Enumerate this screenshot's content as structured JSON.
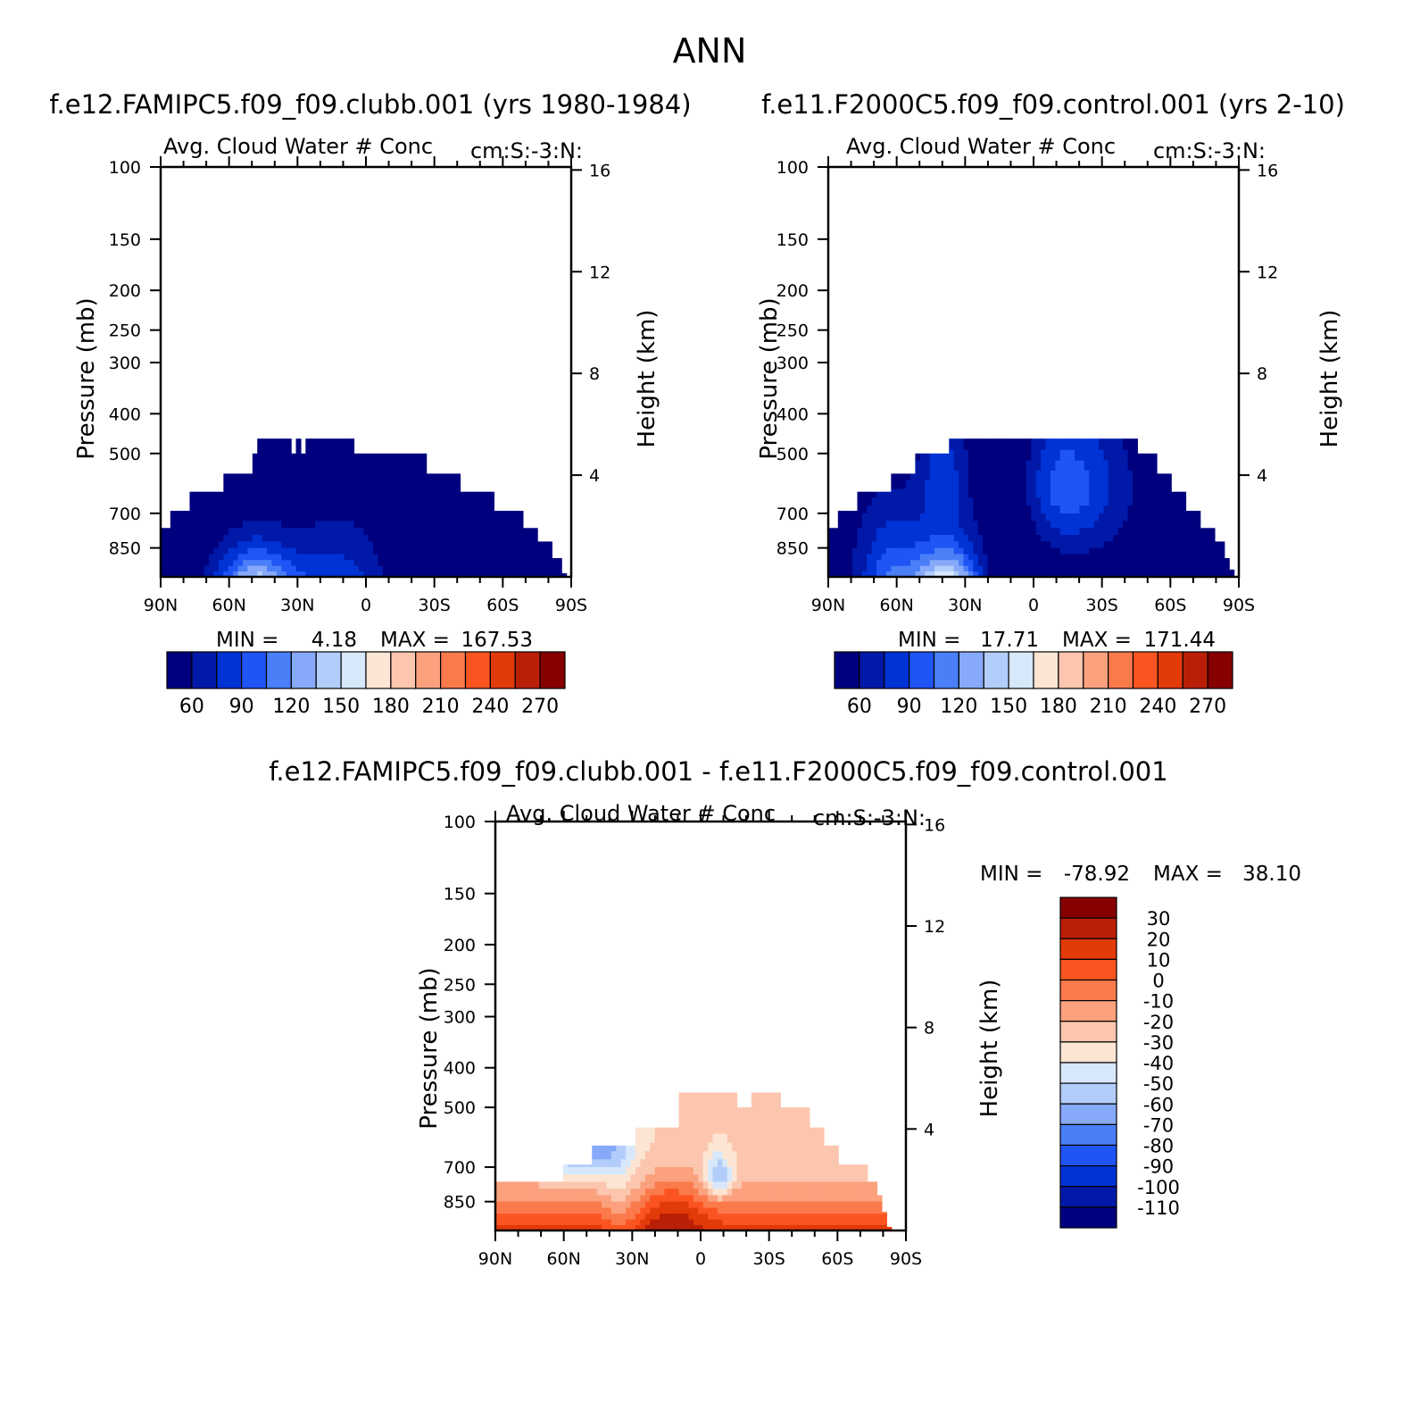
{
  "figure_title": "ANN",
  "ticks": {
    "pressure": [
      "100",
      "150",
      "200",
      "250",
      "300",
      "400",
      "500",
      "700",
      "850"
    ],
    "height": [
      "16",
      "12",
      "8",
      "4"
    ],
    "lat": [
      "90N",
      "60N",
      "30N",
      "0",
      "30S",
      "60S",
      "90S"
    ]
  },
  "colors": {
    "abs_palette": [
      "#00007f",
      "#0019a8",
      "#0033d6",
      "#1f55f5",
      "#4a7ff7",
      "#86a9f9",
      "#b3cdfb",
      "#d7e8fb",
      "#fde5d4",
      "#fcc6ae",
      "#fba17e",
      "#fb7a4c",
      "#fb5421",
      "#e33a0a",
      "#b91f06",
      "#860000"
    ],
    "diff_palette": [
      "#00007f",
      "#0019a8",
      "#0033d6",
      "#1f55f5",
      "#4a7ff7",
      "#86a9f9",
      "#b3cdfb",
      "#d7e8fb",
      "#fde5d4",
      "#fcc6ae",
      "#fba17e",
      "#fb7a4c",
      "#fb5421",
      "#e33a0a",
      "#b91f06",
      "#860000"
    ]
  },
  "chart_data": [
    {
      "type": "heatmap",
      "panel_title": "f.e12.FAMIPC5.f09_f09.clubb.001 (yrs 1980-1984)",
      "subtitle_left": "Avg. Cloud Water # Conc",
      "subtitle_right": "cm:S:-3:N:",
      "ylabel": "Pressure (mb)",
      "ylabel_right": "Height (km)",
      "xlabel": "",
      "x_range": [
        90,
        -90
      ],
      "y_range_mb": [
        1000,
        100
      ],
      "min_label": "MIN =",
      "min_value": "4.18",
      "max_label": "MAX =",
      "max_value": "167.53",
      "colorbar_labels": [
        "60",
        "90",
        "120",
        "150",
        "180",
        "210",
        "240",
        "270"
      ],
      "field_top_mb": [
        760,
        760,
        690,
        690,
        690,
        690,
        620,
        620,
        620,
        620,
        620,
        620,
        620,
        560,
        560,
        560,
        560,
        560,
        560,
        500,
        460,
        460,
        460,
        460,
        460,
        460,
        460,
        500,
        460,
        500,
        460,
        460,
        460,
        460,
        460,
        460,
        460,
        460,
        460,
        460,
        500,
        500,
        500,
        500,
        500,
        500,
        500,
        500,
        500,
        500,
        500,
        500,
        500,
        500,
        500,
        560,
        560,
        560,
        560,
        560,
        560,
        560,
        620,
        620,
        620,
        620,
        620,
        620,
        620,
        690,
        690,
        690,
        690,
        690,
        690,
        760,
        760,
        760,
        820,
        820,
        820,
        900,
        900,
        980,
        1000
      ]
    },
    {
      "type": "heatmap",
      "panel_title": "f.e11.F2000C5.f09_f09.control.001 (yrs 2-10)",
      "subtitle_left": "Avg. Cloud Water # Conc",
      "subtitle_right": "cm:S:-3:N:",
      "ylabel": "Pressure (mb)",
      "ylabel_right": "Height (km)",
      "xlabel": "",
      "x_range": [
        90,
        -90
      ],
      "y_range_mb": [
        1000,
        100
      ],
      "min_label": "MIN =",
      "min_value": "17.71",
      "max_label": "MAX =",
      "max_value": "171.44",
      "colorbar_labels": [
        "60",
        "90",
        "120",
        "150",
        "180",
        "210",
        "240",
        "270"
      ],
      "field_top_mb": [
        760,
        760,
        690,
        690,
        690,
        690,
        620,
        620,
        620,
        620,
        620,
        620,
        620,
        560,
        560,
        560,
        560,
        560,
        500,
        500,
        500,
        500,
        500,
        500,
        500,
        460,
        460,
        460,
        460,
        460,
        460,
        460,
        460,
        460,
        460,
        460,
        460,
        460,
        460,
        460,
        460,
        460,
        460,
        460,
        460,
        460,
        460,
        460,
        460,
        460,
        460,
        460,
        460,
        460,
        460,
        460,
        460,
        460,
        460,
        460,
        460,
        460,
        460,
        460,
        500,
        500,
        500,
        500,
        560,
        560,
        560,
        620,
        620,
        620,
        690,
        690,
        690,
        760,
        760,
        760,
        820,
        820,
        900,
        960,
        1000
      ]
    },
    {
      "type": "heatmap",
      "panel_title": "f.e12.FAMIPC5.f09_f09.clubb.001 - f.e11.F2000C5.f09_f09.control.001",
      "subtitle_left": "Avg. Cloud Water # Conc",
      "subtitle_right": "cm:S:-3:N:",
      "ylabel": "Pressure (mb)",
      "ylabel_right": "Height (km)",
      "xlabel": "",
      "x_range": [
        90,
        -90
      ],
      "y_range_mb": [
        1000,
        100
      ],
      "min_label": "MIN =",
      "min_value": "-78.92",
      "max_label": "MAX =",
      "max_value": "38.10",
      "colorbar_labels": [
        "30",
        "20",
        "10",
        "0",
        "-10",
        "-20",
        "-30",
        "-40",
        "-50",
        "-60",
        "-70",
        "-80",
        "-90",
        "-100",
        "-110"
      ],
      "field_top_mb": [
        760,
        760,
        760,
        760,
        760,
        760,
        760,
        760,
        760,
        760,
        760,
        760,
        760,
        760,
        690,
        690,
        690,
        690,
        690,
        690,
        620,
        620,
        620,
        620,
        620,
        620,
        620,
        620,
        620,
        560,
        560,
        560,
        560,
        560,
        560,
        560,
        560,
        560,
        460,
        460,
        460,
        460,
        460,
        460,
        460,
        460,
        460,
        460,
        460,
        460,
        500,
        500,
        500,
        460,
        460,
        460,
        460,
        460,
        460,
        500,
        500,
        500,
        500,
        500,
        500,
        560,
        560,
        560,
        620,
        620,
        620,
        690,
        690,
        690,
        690,
        690,
        690,
        760,
        760,
        820,
        900,
        980,
        1000,
        1000,
        1000
      ]
    }
  ]
}
